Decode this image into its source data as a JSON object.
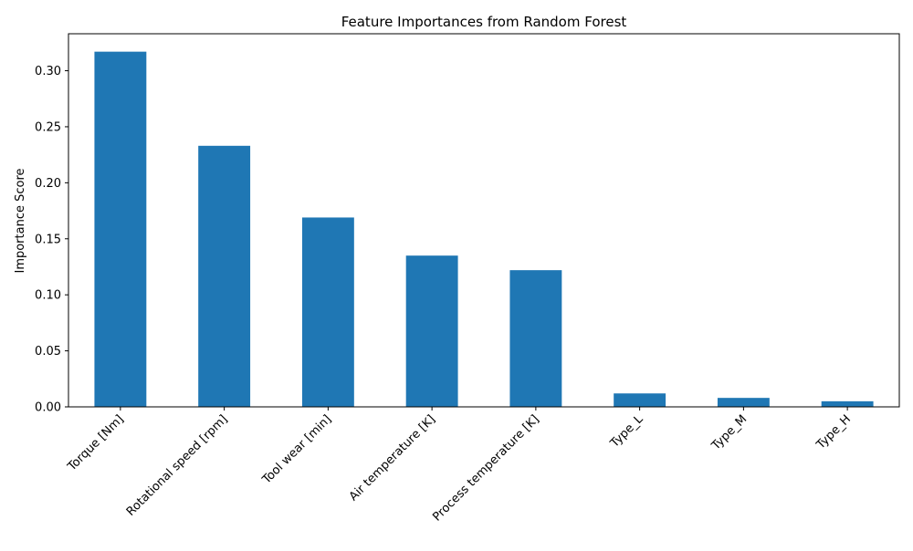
{
  "chart_data": {
    "type": "bar",
    "title": "Feature Importances from Random Forest",
    "xlabel": "",
    "ylabel": "Importance Score",
    "categories": [
      "Torque [Nm]",
      "Rotational speed [rpm]",
      "Tool wear [min]",
      "Air temperature [K]",
      "Process temperature [K]",
      "Type_L",
      "Type_M",
      "Type_H"
    ],
    "values": [
      0.317,
      0.233,
      0.169,
      0.135,
      0.122,
      0.012,
      0.008,
      0.005
    ],
    "ylim": [
      0,
      0.333
    ],
    "yticks": [
      0.0,
      0.05,
      0.1,
      0.15,
      0.2,
      0.25,
      0.3
    ],
    "ytick_labels": [
      "0.00",
      "0.05",
      "0.10",
      "0.15",
      "0.20",
      "0.25",
      "0.30"
    ],
    "grid": false,
    "bar_color": "#1f77b4"
  }
}
